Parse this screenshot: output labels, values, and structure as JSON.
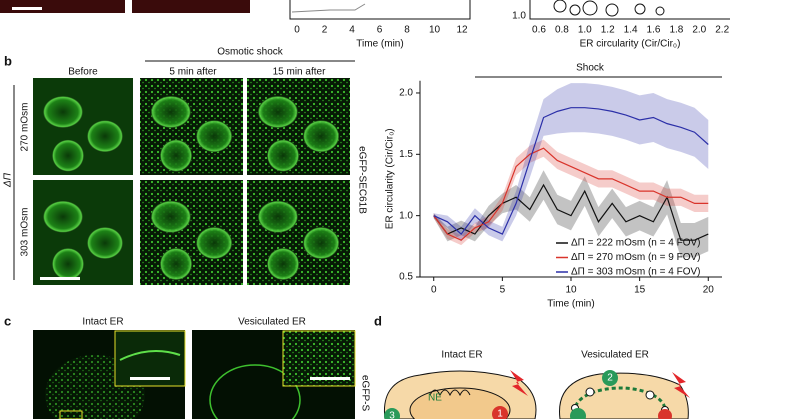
{
  "chart_data": {
    "type": "line",
    "xlabel": "Time (min)",
    "ylabel": "ER circularity (Cir/Cir₀)",
    "annotation": "Shock",
    "x": [
      0,
      1,
      2,
      3,
      4,
      5,
      6,
      7,
      8,
      9,
      10,
      11,
      12,
      13,
      14,
      15,
      16,
      17,
      18,
      19,
      20
    ],
    "series": [
      {
        "name": "ΔΠ = 222 mOsm (n = 4 FOV)",
        "color": "#111111",
        "values": [
          1.0,
          0.85,
          0.9,
          0.85,
          1.0,
          1.1,
          1.15,
          1.05,
          1.25,
          1.05,
          1.0,
          1.2,
          0.95,
          1.1,
          0.95,
          1.0,
          0.95,
          1.15,
          0.8,
          0.8,
          0.85
        ],
        "errors": [
          0.02,
          0.06,
          0.06,
          0.06,
          0.08,
          0.08,
          0.1,
          0.1,
          0.12,
          0.12,
          0.12,
          0.12,
          0.12,
          0.12,
          0.12,
          0.12,
          0.12,
          0.14,
          0.14,
          0.14,
          0.14
        ]
      },
      {
        "name": "ΔΠ = 270 mOsm (n = 9 FOV)",
        "color": "#d9342b",
        "values": [
          1.0,
          0.85,
          0.8,
          0.9,
          0.95,
          1.1,
          1.4,
          1.5,
          1.55,
          1.45,
          1.4,
          1.35,
          1.3,
          1.3,
          1.25,
          1.2,
          1.2,
          1.15,
          1.15,
          1.1,
          1.1
        ],
        "errors": [
          0.02,
          0.04,
          0.04,
          0.04,
          0.05,
          0.06,
          0.07,
          0.07,
          0.07,
          0.07,
          0.07,
          0.07,
          0.07,
          0.07,
          0.07,
          0.07,
          0.07,
          0.07,
          0.07,
          0.07,
          0.07
        ]
      },
      {
        "name": "ΔΠ = 303 mOsm (n = 4 FOV)",
        "color": "#2b2fa8",
        "values": [
          1.0,
          0.95,
          0.85,
          1.0,
          0.9,
          0.85,
          1.1,
          1.45,
          1.8,
          1.85,
          1.88,
          1.88,
          1.87,
          1.85,
          1.82,
          1.78,
          1.8,
          1.75,
          1.72,
          1.68,
          1.58
        ],
        "errors": [
          0.02,
          0.05,
          0.06,
          0.06,
          0.06,
          0.06,
          0.1,
          0.14,
          0.15,
          0.18,
          0.2,
          0.2,
          0.2,
          0.2,
          0.2,
          0.2,
          0.2,
          0.2,
          0.2,
          0.2,
          0.2
        ]
      }
    ],
    "xlim": [
      -1,
      21
    ],
    "xticks": [
      0,
      5,
      10,
      15,
      20
    ],
    "ylim": [
      0.5,
      2.1
    ],
    "yticks": [
      {
        "value": 0.5,
        "label": "0.5"
      },
      {
        "value": 1.0,
        "label": "1.0"
      },
      {
        "value": 1.5,
        "label": "1.5"
      },
      {
        "value": 2.0,
        "label": "2.0"
      }
    ]
  },
  "figure": {
    "top": {
      "time_ticks": [
        "0",
        "2",
        "4",
        "6",
        "8",
        "10",
        "12"
      ],
      "time_label": "Time (min)",
      "circ_ticks": [
        "0.6",
        "0.8",
        "1.0",
        "1.2",
        "1.4",
        "1.6",
        "1.8",
        "2.0",
        "2.2"
      ],
      "circ_label": "ER circularity (Cir/Cir₀)",
      "circ_ytick": "1.0"
    },
    "b": {
      "letter": "b",
      "before": "Before",
      "shock": "Osmotic shock",
      "t5": "5 min after",
      "t15": "15 min after",
      "row1": "270 mOsm",
      "row2": "303 mOsm",
      "delta": "ΔΠ",
      "marker": "eGFP-SEC61B"
    },
    "c": {
      "letter": "c",
      "intact": "Intact ER",
      "vesiculated": "Vesiculated ER",
      "marker": "eGFP-S"
    },
    "d": {
      "letter": "d",
      "intact": "Intact ER",
      "vesiculated": "Vesiculated ER",
      "ne": "NE",
      "n1": "1",
      "n2": "2",
      "n3": "3"
    }
  }
}
